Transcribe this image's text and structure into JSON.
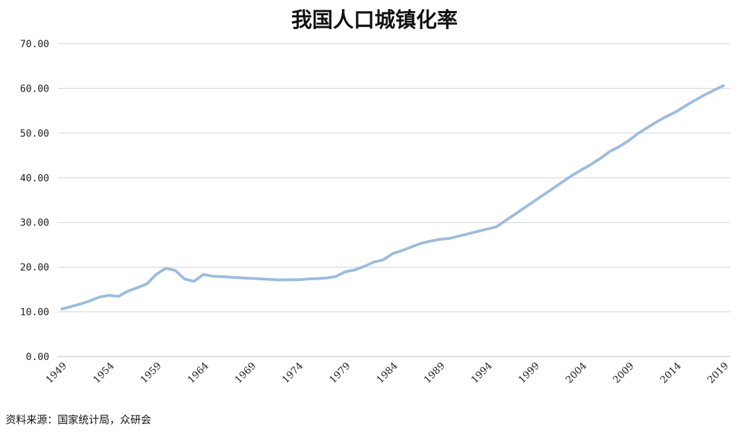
{
  "chart_data": {
    "type": "line",
    "title": "我国人口城镇化率",
    "xlabel": "",
    "ylabel": "",
    "ylim": [
      0,
      70
    ],
    "yticks": [
      "0.00",
      "10.00",
      "20.00",
      "30.00",
      "40.00",
      "50.00",
      "60.00",
      "70.00"
    ],
    "xticks": [
      "1949",
      "1954",
      "1959",
      "1964",
      "1969",
      "1974",
      "1979",
      "1984",
      "1989",
      "1994",
      "1999",
      "2004",
      "2009",
      "2014",
      "2019"
    ],
    "grid": true,
    "legend": "none",
    "line_color": "#9dbcdd",
    "series": [
      {
        "x": [
          1949,
          1950,
          1951,
          1952,
          1953,
          1954,
          1955,
          1956,
          1957,
          1958,
          1959,
          1960,
          1961,
          1962,
          1963,
          1964,
          1965,
          1966,
          1967,
          1968,
          1969,
          1970,
          1971,
          1972,
          1973,
          1974,
          1975,
          1976,
          1977,
          1978,
          1979,
          1980,
          1981,
          1982,
          1983,
          1984,
          1985,
          1986,
          1987,
          1988,
          1989,
          1990,
          1991,
          1992,
          1993,
          1994,
          1995,
          1996,
          1997,
          1998,
          1999,
          2000,
          2001,
          2002,
          2003,
          2004,
          2005,
          2006,
          2007,
          2008,
          2009,
          2010,
          2011,
          2012,
          2013,
          2014,
          2015,
          2016,
          2017,
          2018,
          2019
        ],
        "values": [
          10.64,
          11.18,
          11.78,
          12.46,
          13.31,
          13.69,
          13.48,
          14.62,
          15.39,
          16.25,
          18.41,
          19.75,
          19.29,
          17.33,
          16.84,
          18.37,
          17.98,
          17.86,
          17.74,
          17.62,
          17.5,
          17.38,
          17.26,
          17.13,
          17.2,
          17.16,
          17.34,
          17.44,
          17.55,
          17.92,
          18.96,
          19.39,
          20.16,
          21.13,
          21.62,
          23.01,
          23.71,
          24.52,
          25.32,
          25.81,
          26.21,
          26.41,
          26.94,
          27.46,
          27.99,
          28.51,
          29.04,
          30.48,
          31.91,
          33.35,
          34.78,
          36.22,
          37.66,
          39.09,
          40.53,
          41.76,
          42.99,
          44.34,
          45.89,
          46.99,
          48.34,
          49.95,
          51.27,
          52.57,
          53.73,
          54.77,
          56.1,
          57.35,
          58.52,
          59.58,
          60.6
        ]
      }
    ]
  },
  "footer": {
    "source": "资料来源：国家统计局，众研会"
  }
}
